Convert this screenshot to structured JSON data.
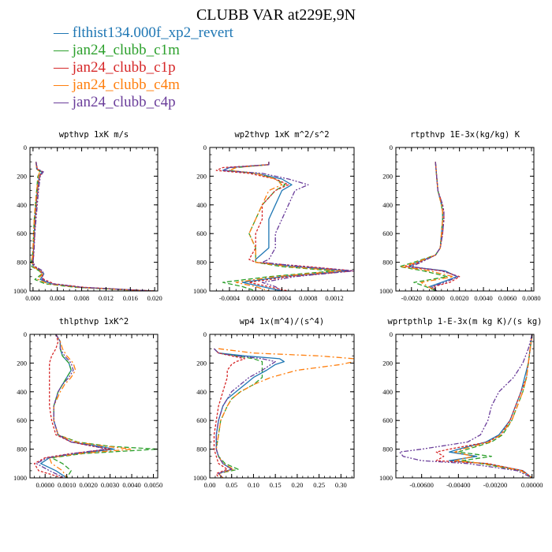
{
  "figure": {
    "title": "CLUBB VAR at229E,9N"
  },
  "legend": [
    {
      "marker": "—",
      "label": "flthist134.000f_xp2_revert",
      "color": "#1f77b4"
    },
    {
      "marker": "—",
      "label": "jan24_clubb_c1m",
      "color": "#2ca02c"
    },
    {
      "marker": "—",
      "label": "jan24_clubb_c1p",
      "color": "#d62728"
    },
    {
      "marker": "—",
      "label": "jan24_clubb_c4m",
      "color": "#ff7f0e"
    },
    {
      "marker": "—",
      "label": "jan24_clubb_c4p",
      "color": "#6a3d9a"
    }
  ],
  "chart_data": [
    {
      "type": "line",
      "title": "wpthvp   1xK m/s",
      "xlim": [
        -0.0005,
        0.0205
      ],
      "ylim": [
        1000,
        0
      ],
      "xticks": [
        0.0,
        0.004,
        0.008,
        0.012,
        0.016,
        0.02
      ],
      "xticklabels": [
        "0.000",
        "0.004",
        "0.008",
        "0.012",
        "0.016",
        "0.020"
      ],
      "yticks": [
        0,
        200,
        400,
        600,
        800,
        1000
      ],
      "yticklabels": [
        "0",
        "200",
        "400",
        "600",
        "800",
        "1000"
      ],
      "y": [
        100,
        150,
        170,
        200,
        300,
        400,
        500,
        600,
        700,
        760,
        800,
        830,
        860,
        880,
        920,
        950,
        975,
        992,
        1000
      ],
      "series": [
        {
          "values": [
            0.0005,
            0.0006,
            0.0015,
            0.001,
            0.0007,
            0.0005,
            0.0003,
            0.0002,
            0.0001,
            0.0,
            -0.0002,
            0.0001,
            0.0012,
            0.0018,
            0.0012,
            0.003,
            0.008,
            0.016,
            0.02
          ]
        },
        {
          "values": [
            0.0005,
            0.0006,
            0.0012,
            0.0008,
            0.0006,
            0.0004,
            0.0002,
            0.0001,
            0.0,
            -0.0001,
            -0.0003,
            -0.0002,
            0.001,
            0.0015,
            0.0003,
            0.002,
            0.007,
            0.015,
            0.02
          ]
        },
        {
          "values": [
            0.0005,
            0.0007,
            0.0016,
            0.0011,
            0.0008,
            0.0006,
            0.0004,
            0.0003,
            0.0001,
            0.0001,
            -0.0001,
            0.0003,
            0.0014,
            0.0013,
            0.0018,
            0.0035,
            0.0085,
            0.016,
            0.02
          ]
        },
        {
          "values": [
            0.0005,
            0.0006,
            0.0011,
            0.0009,
            0.0006,
            0.0004,
            0.0002,
            0.0001,
            0.0,
            -0.0001,
            -0.0002,
            0.0,
            0.0011,
            0.0016,
            0.0008,
            0.0025,
            0.0075,
            0.0155,
            0.02
          ]
        },
        {
          "values": [
            0.0005,
            0.0007,
            0.0017,
            0.0012,
            0.0009,
            0.0007,
            0.0005,
            0.0003,
            0.0002,
            0.0001,
            0.0,
            0.0004,
            0.0016,
            0.0017,
            0.0015,
            0.0032,
            0.008,
            0.016,
            0.02
          ]
        }
      ]
    },
    {
      "type": "line",
      "title": "wp2thvp   1xK m^2/s^2",
      "xlim": [
        -0.0007,
        0.0015
      ],
      "ylim": [
        1000,
        0
      ],
      "xticks": [
        -0.0004,
        0.0,
        0.0004,
        0.0008,
        0.0012
      ],
      "xticklabels": [
        "-0.0004",
        "0.0000",
        "0.0004",
        "0.0008",
        "0.0012"
      ],
      "yticks": [
        0,
        200,
        400,
        600,
        800,
        1000
      ],
      "yticklabels": [
        "0",
        "200",
        "400",
        "600",
        "800",
        "1000"
      ],
      "y": [
        100,
        120,
        140,
        160,
        180,
        220,
        260,
        300,
        400,
        500,
        600,
        700,
        780,
        800,
        830,
        860,
        900,
        940,
        970,
        1000
      ],
      "series": [
        {
          "values": [
            0.0002,
            0.0002,
            -0.0004,
            -0.0005,
            0.0,
            0.0004,
            0.00055,
            0.0004,
            0.0003,
            0.0002,
            0.0002,
            0.0002,
            0.0,
            0.0,
            0.0006,
            0.0014,
            0.0004,
            -0.0002,
            0.0001,
            0.0004
          ]
        },
        {
          "values": [
            0.0002,
            0.0002,
            -0.0003,
            -0.0004,
            0.0,
            0.0003,
            0.00045,
            0.0003,
            0.0001,
            0.0,
            -0.0001,
            0.0,
            0.0,
            0.0,
            0.0004,
            0.0012,
            0.0002,
            -0.0005,
            -0.0002,
            0.0
          ]
        },
        {
          "values": [
            0.0002,
            0.0002,
            -0.0005,
            -0.0006,
            -0.0001,
            0.0003,
            0.0005,
            0.0003,
            0.0001,
            0.0001,
            0.0,
            0.0,
            -0.0001,
            0.0,
            0.0008,
            0.0015,
            0.0005,
            -0.0001,
            0.0002,
            0.0005
          ]
        },
        {
          "values": [
            0.0002,
            0.0002,
            -0.0003,
            -0.0004,
            0.0,
            0.0003,
            0.0004,
            0.0002,
            0.0001,
            0.0,
            -0.0001,
            0.0,
            0.0,
            0.0,
            0.0005,
            0.0013,
            0.0003,
            -0.0003,
            0.0,
            0.0002
          ]
        },
        {
          "values": [
            0.0002,
            0.0002,
            -0.0004,
            -0.0005,
            0.0001,
            0.0005,
            0.0008,
            0.0006,
            0.0005,
            0.0004,
            0.0003,
            0.0003,
            0.0002,
            0.0001,
            0.0007,
            0.0015,
            0.0006,
            0.0001,
            0.0003,
            0.0004
          ]
        }
      ]
    },
    {
      "type": "line",
      "title": "rtpthvp   1E-3x(kg/kg) K",
      "xlim": [
        -0.0033,
        0.0082
      ],
      "ylim": [
        1000,
        0
      ],
      "xticks": [
        -0.002,
        0.0,
        0.002,
        0.004,
        0.006,
        0.008
      ],
      "xticklabels": [
        "-0.0020",
        "0.0000",
        "0.0020",
        "0.0040",
        "0.0060",
        "0.0080"
      ],
      "yticks": [
        0,
        200,
        400,
        600,
        800,
        1000
      ],
      "yticklabels": [
        "0",
        "200",
        "400",
        "600",
        "800",
        "1000"
      ],
      "y": [
        100,
        200,
        300,
        400,
        450,
        500,
        600,
        700,
        750,
        800,
        830,
        860,
        900,
        940,
        970,
        1000
      ],
      "series": [
        {
          "values": [
            0.0,
            0.0001,
            0.0002,
            0.0005,
            0.0006,
            0.0006,
            0.0005,
            0.0004,
            0.0,
            -0.0015,
            -0.0022,
            0.0008,
            0.0018,
            0.0005,
            -0.0005,
            0.0001
          ]
        },
        {
          "values": [
            0.0,
            0.0001,
            0.0002,
            0.0005,
            0.0006,
            0.0006,
            0.0005,
            0.0004,
            0.0,
            -0.0018,
            -0.003,
            -0.001,
            0.001,
            -0.0018,
            -0.0008,
            0.0001
          ]
        },
        {
          "values": [
            0.0,
            0.0001,
            0.0002,
            0.0006,
            0.0007,
            0.0007,
            0.0006,
            0.0004,
            0.0,
            -0.0013,
            -0.0025,
            0.0005,
            0.002,
            0.0012,
            -0.0002,
            0.0001
          ]
        },
        {
          "values": [
            0.0,
            0.0001,
            0.0002,
            0.0005,
            0.0006,
            0.0006,
            0.0005,
            0.0004,
            0.0,
            -0.0016,
            -0.0028,
            -0.0005,
            0.0015,
            -0.0012,
            -0.0006,
            0.0001
          ]
        },
        {
          "values": [
            0.0,
            0.0001,
            0.0002,
            0.0006,
            0.0007,
            0.0007,
            0.0006,
            0.0004,
            0.0,
            -0.0012,
            -0.002,
            0.0006,
            0.0019,
            0.0008,
            -0.0003,
            0.0001
          ]
        }
      ]
    },
    {
      "type": "line",
      "title": "thlpthvp   1xK^2",
      "xlim": [
        -0.0007,
        0.0052
      ],
      "ylim": [
        1000,
        0
      ],
      "xticks": [
        0.0,
        0.001,
        0.002,
        0.003,
        0.004,
        0.005
      ],
      "xticklabels": [
        "0.0000",
        "0.0010",
        "0.0020",
        "0.0030",
        "0.0040",
        "0.0050"
      ],
      "yticks": [
        0,
        200,
        400,
        600,
        800,
        1000
      ],
      "yticklabels": [
        "0",
        "200",
        "400",
        "600",
        "800",
        "1000"
      ],
      "y": [
        0,
        50,
        100,
        150,
        200,
        250,
        300,
        350,
        400,
        500,
        600,
        700,
        750,
        780,
        800,
        830,
        860,
        900,
        950,
        1000
      ],
      "series": [
        {
          "values": [
            0.0005,
            0.0007,
            0.0007,
            0.0008,
            0.0011,
            0.0012,
            0.001,
            0.0008,
            0.0006,
            0.0004,
            0.0004,
            0.0006,
            0.0012,
            0.0025,
            0.0032,
            0.0015,
            0.0002,
            -0.0002,
            0.0005,
            0.001
          ]
        },
        {
          "values": [
            0.0005,
            0.0007,
            0.0007,
            0.0008,
            0.0011,
            0.0012,
            0.001,
            0.0008,
            0.0006,
            0.0004,
            0.0004,
            0.0006,
            0.0015,
            0.003,
            0.0052,
            0.0018,
            0.0003,
            0.0008,
            0.0012,
            0.001
          ]
        },
        {
          "values": [
            0.0005,
            0.0006,
            0.0005,
            0.0003,
            0.0002,
            0.0002,
            0.0002,
            0.0002,
            0.0002,
            0.0002,
            0.0003,
            0.0005,
            0.0012,
            0.0022,
            0.003,
            0.0012,
            0.0,
            -0.0005,
            -0.0003,
            0.0008
          ]
        },
        {
          "values": [
            0.0005,
            0.0007,
            0.0008,
            0.001,
            0.0013,
            0.0014,
            0.0012,
            0.0009,
            0.0007,
            0.0004,
            0.0004,
            0.0006,
            0.0014,
            0.0028,
            0.004,
            0.0016,
            0.0002,
            0.0003,
            0.0008,
            0.001
          ]
        },
        {
          "values": [
            0.0005,
            0.0007,
            0.0007,
            0.0009,
            0.0012,
            0.0013,
            0.0011,
            0.0008,
            0.0006,
            0.0004,
            0.0004,
            0.0006,
            0.0012,
            0.0023,
            0.0028,
            0.0013,
            0.0001,
            -0.0004,
            0.0002,
            0.0009
          ]
        }
      ]
    },
    {
      "type": "line",
      "title": "wp4   1x(m^4)/(s^4)",
      "xlim": [
        0.0,
        0.33
      ],
      "ylim": [
        1000,
        0
      ],
      "xticks": [
        0.0,
        0.05,
        0.1,
        0.15,
        0.2,
        0.25,
        0.3
      ],
      "xticklabels": [
        "0.00",
        "0.05",
        "0.10",
        "0.15",
        "0.20",
        "0.25",
        "0.30"
      ],
      "yticks": [
        0,
        200,
        400,
        600,
        800,
        1000
      ],
      "yticklabels": [
        "0",
        "200",
        "400",
        "600",
        "800",
        "1000"
      ],
      "y": [
        100,
        130,
        150,
        170,
        190,
        210,
        250,
        300,
        350,
        400,
        450,
        500,
        600,
        700,
        800,
        850,
        900,
        940,
        970,
        1000
      ],
      "series": [
        {
          "values": [
            0.01,
            0.02,
            0.08,
            0.16,
            0.17,
            0.15,
            0.13,
            0.1,
            0.08,
            0.06,
            0.04,
            0.03,
            0.02,
            0.015,
            0.015,
            0.02,
            0.03,
            0.05,
            0.02,
            0.03
          ]
        },
        {
          "values": [
            0.01,
            0.02,
            0.06,
            0.1,
            0.12,
            0.12,
            0.12,
            0.12,
            0.1,
            0.07,
            0.05,
            0.04,
            0.025,
            0.02,
            0.015,
            0.02,
            0.035,
            0.065,
            0.02,
            0.03
          ]
        },
        {
          "values": [
            0.01,
            0.02,
            0.05,
            0.08,
            0.06,
            0.05,
            0.04,
            0.04,
            0.035,
            0.03,
            0.025,
            0.02,
            0.015,
            0.01,
            0.01,
            0.015,
            0.02,
            0.04,
            0.015,
            0.02
          ]
        },
        {
          "values": [
            0.02,
            0.1,
            0.25,
            0.33,
            0.33,
            0.3,
            0.2,
            0.14,
            0.1,
            0.07,
            0.05,
            0.04,
            0.025,
            0.02,
            0.015,
            0.02,
            0.03,
            0.055,
            0.02,
            0.03
          ]
        },
        {
          "values": [
            0.01,
            0.02,
            0.06,
            0.12,
            0.15,
            0.14,
            0.12,
            0.09,
            0.07,
            0.05,
            0.04,
            0.03,
            0.02,
            0.015,
            0.015,
            0.02,
            0.03,
            0.05,
            0.02,
            0.03
          ]
        }
      ]
    },
    {
      "type": "line",
      "title": "wprtpthlp   1-E-3x(m kg K)/(s kg)",
      "xlim": [
        -0.0074,
        0.0001
      ],
      "ylim": [
        1000,
        0
      ],
      "xticks": [
        -0.006,
        -0.004,
        -0.002,
        0.0
      ],
      "xticklabels": [
        "-0.00600",
        "-0.00400",
        "-0.00200",
        "0.00000"
      ],
      "yticks": [
        0,
        200,
        400,
        600,
        800,
        1000
      ],
      "yticklabels": [
        "0",
        "200",
        "400",
        "600",
        "800",
        "1000"
      ],
      "y": [
        0,
        100,
        200,
        300,
        400,
        500,
        600,
        700,
        750,
        800,
        820,
        850,
        880,
        900,
        950,
        1000
      ],
      "series": [
        {
          "values": [
            0.0,
            -0.0001,
            -0.0002,
            -0.0004,
            -0.0006,
            -0.0009,
            -0.0012,
            -0.0018,
            -0.0025,
            -0.004,
            -0.0045,
            -0.003,
            -0.0045,
            -0.0025,
            -0.0005,
            0.0
          ]
        },
        {
          "values": [
            0.0,
            -0.0001,
            -0.0002,
            -0.0003,
            -0.0005,
            -0.0008,
            -0.0011,
            -0.0016,
            -0.0022,
            -0.0035,
            -0.004,
            -0.0022,
            -0.0038,
            -0.0028,
            -0.0006,
            0.0
          ]
        },
        {
          "values": [
            0.0,
            -0.0001,
            -0.0002,
            -0.0003,
            -0.0006,
            -0.0009,
            -0.0012,
            -0.0017,
            -0.0024,
            -0.0045,
            -0.0052,
            -0.0048,
            -0.0052,
            -0.0024,
            -0.0005,
            0.0
          ]
        },
        {
          "values": [
            0.0,
            -0.0001,
            -0.0002,
            -0.0003,
            -0.0005,
            -0.0008,
            -0.0011,
            -0.0017,
            -0.0023,
            -0.0038,
            -0.0042,
            -0.0032,
            -0.0042,
            -0.0026,
            -0.0006,
            0.0
          ]
        },
        {
          "values": [
            0.0,
            -0.0002,
            -0.0005,
            -0.001,
            -0.0018,
            -0.0022,
            -0.0024,
            -0.0028,
            -0.0035,
            -0.006,
            -0.0072,
            -0.007,
            -0.006,
            -0.0035,
            -0.0008,
            0.0
          ]
        }
      ]
    }
  ]
}
